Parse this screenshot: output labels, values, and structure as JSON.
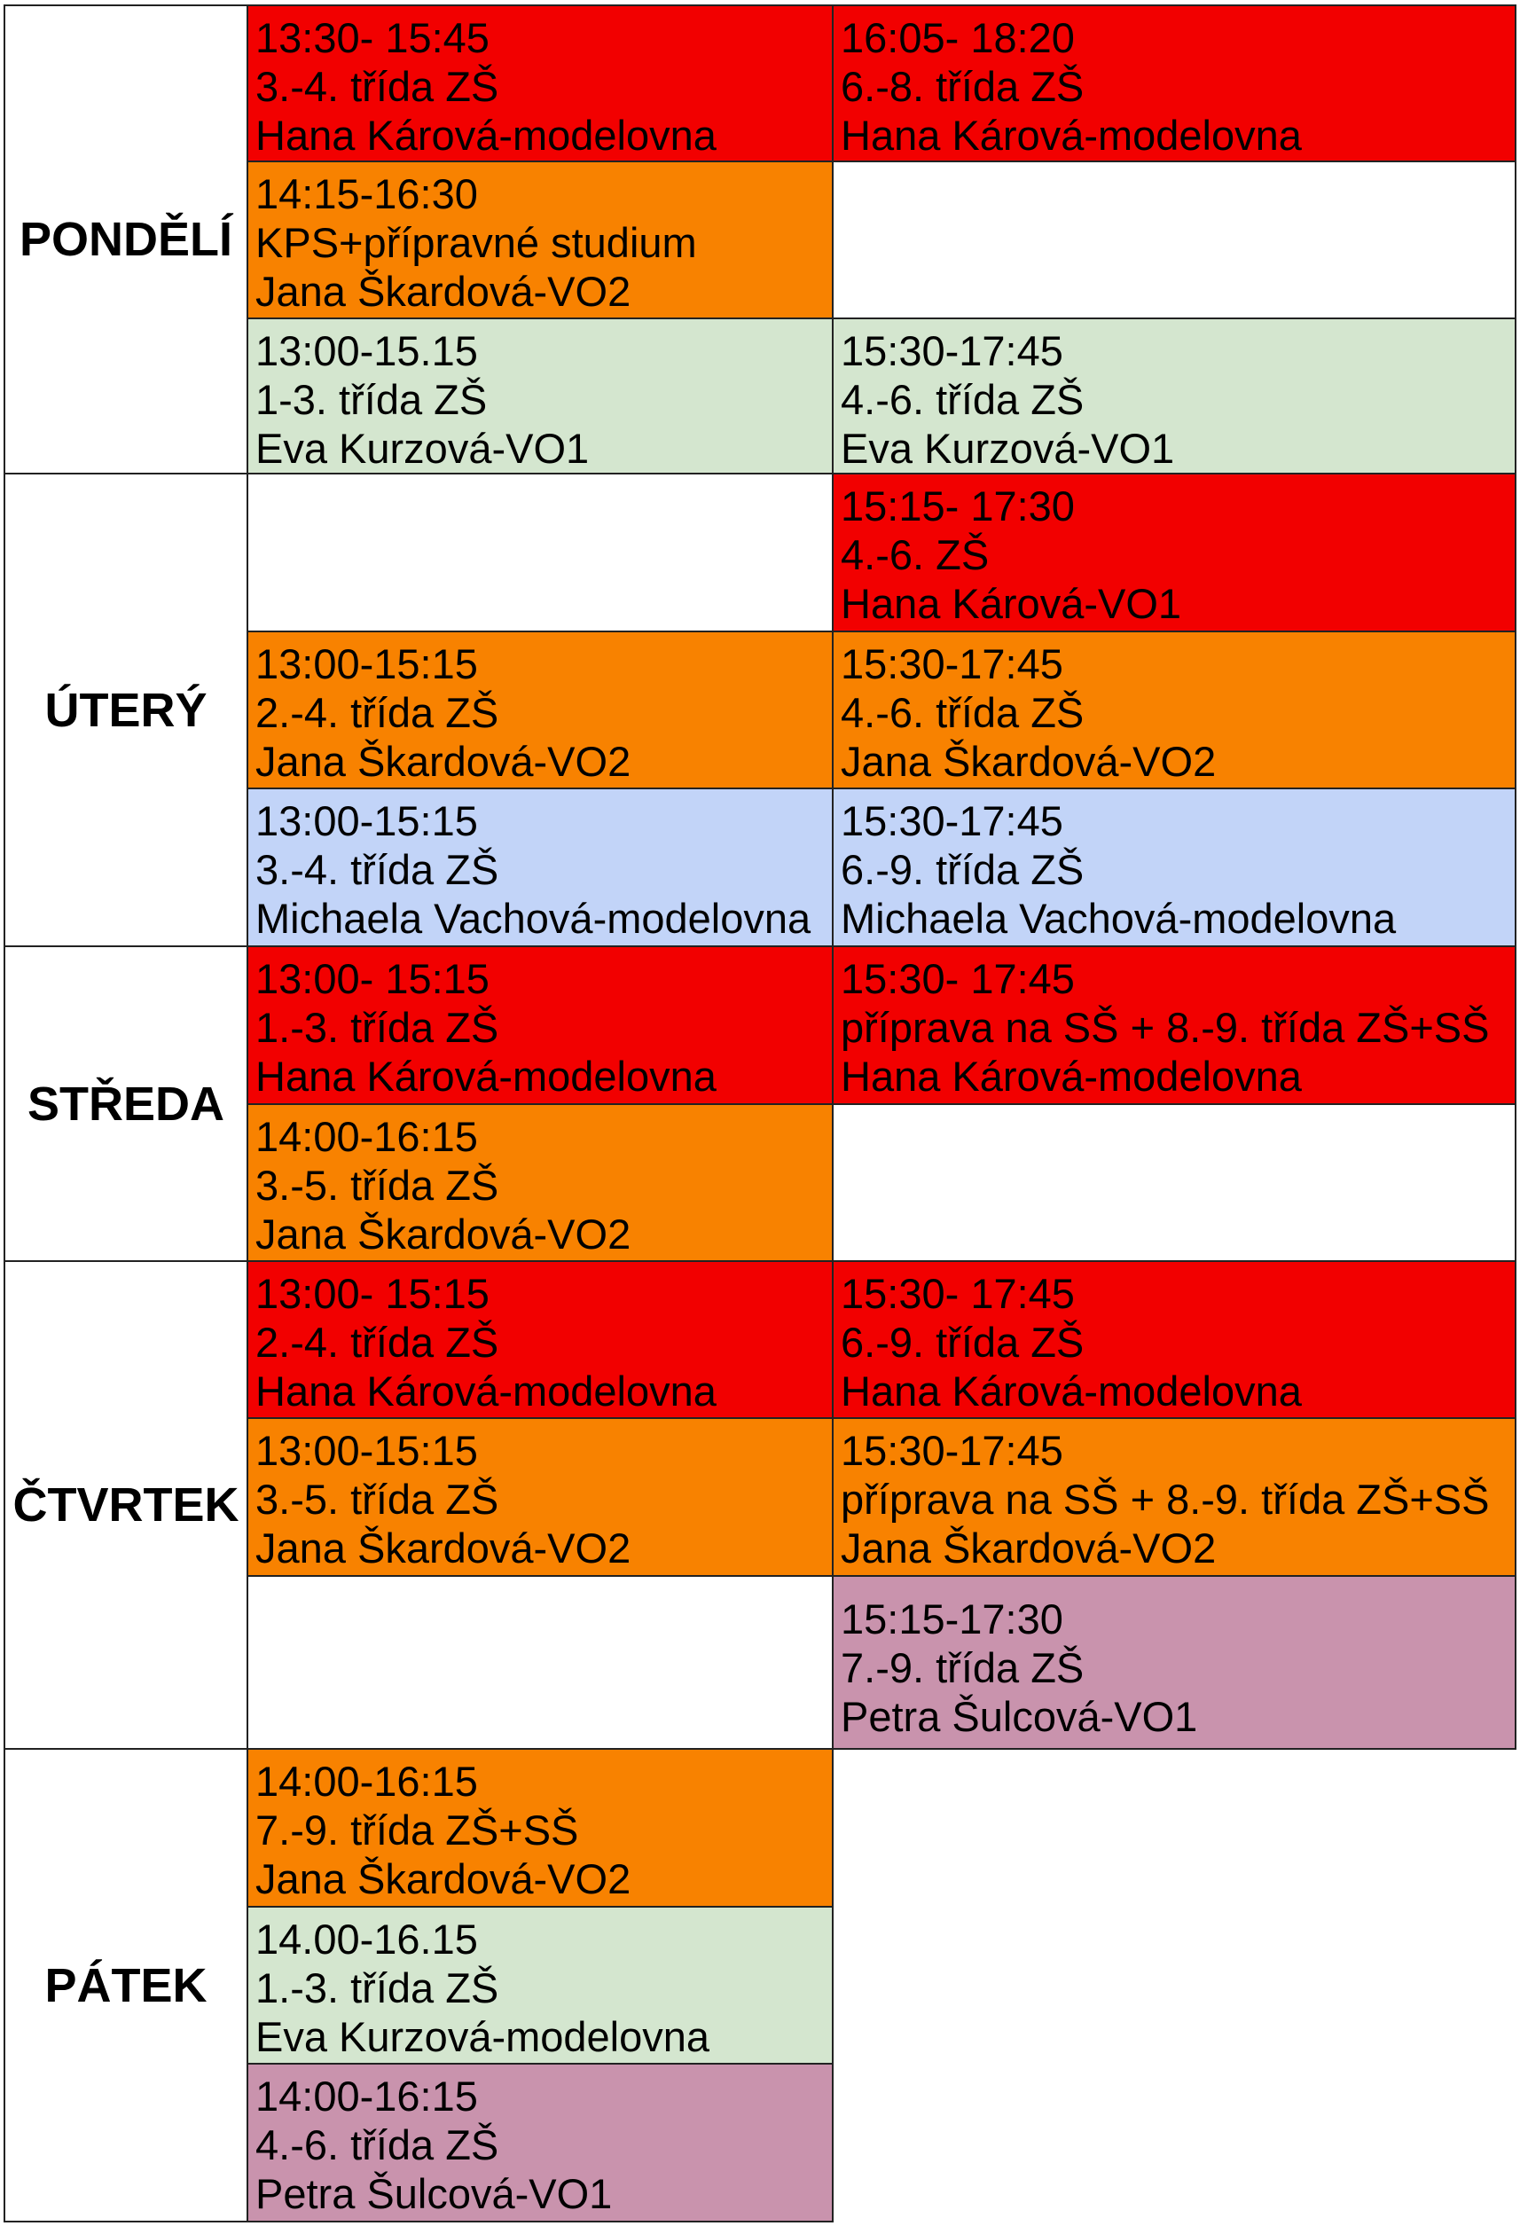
{
  "days": {
    "mon": "PONDĚLÍ",
    "tue": "ÚTERÝ",
    "wed": "STŘEDA",
    "thu": "ČTVRTEK",
    "fri": "PÁTEK"
  },
  "slots": {
    "mon_a1": {
      "time": "13:30- 15:45",
      "group": "3.-4. třída ZŠ",
      "teacher": "Hana Kárová-modelovna",
      "color": "#f20000"
    },
    "mon_a2": {
      "time": "16:05- 18:20",
      "group": "6.-8. třída ZŠ",
      "teacher": "Hana Kárová-modelovna",
      "color": "#f20000"
    },
    "mon_b1": {
      "time": "14:15-16:30",
      "group": "KPS+přípravné studium",
      "teacher": "Jana Škardová-VO2",
      "color": "#f88200"
    },
    "mon_c1": {
      "time": "13:00-15.15",
      "group": "1-3. třída ZŠ",
      "teacher": "Eva Kurzová-VO1",
      "color": "#d4e6cf"
    },
    "mon_c2": {
      "time": "15:30-17:45",
      "group": "4.-6. třída ZŠ",
      "teacher": "Eva Kurzová-VO1",
      "color": "#d4e6cf"
    },
    "tue_a2": {
      "time": "15:15- 17:30",
      "group": "4.-6. ZŠ",
      "teacher": "Hana Kárová-VO1",
      "color": "#f20000"
    },
    "tue_b1": {
      "time": "13:00-15:15",
      "group": "2.-4. třída ZŠ",
      "teacher": "Jana Škardová-VO2",
      "color": "#f88200"
    },
    "tue_b2": {
      "time": "15:30-17:45",
      "group": "4.-6. třída ZŠ",
      "teacher": "Jana Škardová-VO2",
      "color": "#f88200"
    },
    "tue_c1": {
      "time": "13:00-15:15",
      "group": "3.-4. třída ZŠ",
      "teacher": "Michaela Vachová-modelovna",
      "color": "#c2d4f8"
    },
    "tue_c2": {
      "time": "15:30-17:45",
      "group": "6.-9. třída ZŠ",
      "teacher": "Michaela Vachová-modelovna",
      "color": "#c2d4f8"
    },
    "wed_a1": {
      "time": "13:00- 15:15",
      "group": "1.-3. třída ZŠ",
      "teacher": "Hana Kárová-modelovna",
      "color": "#f20000"
    },
    "wed_a2": {
      "time": "15:30- 17:45",
      "group": "příprava na SŠ + 8.-9. třída ZŠ+SŠ",
      "teacher": "Hana Kárová-modelovna",
      "color": "#f20000"
    },
    "wed_b1": {
      "time": "14:00-16:15",
      "group": "3.-5. třída ZŠ",
      "teacher": "Jana Škardová-VO2",
      "color": "#f88200"
    },
    "thu_a1": {
      "time": "13:00- 15:15",
      "group": "2.-4. třída ZŠ",
      "teacher": "Hana Kárová-modelovna",
      "color": "#f20000"
    },
    "thu_a2": {
      "time": "15:30- 17:45",
      "group": "6.-9. třída ZŠ",
      "teacher": "Hana Kárová-modelovna",
      "color": "#f20000"
    },
    "thu_b1": {
      "time": "13:00-15:15",
      "group": "3.-5. třída ZŠ",
      "teacher": "Jana Škardová-VO2",
      "color": "#f88200"
    },
    "thu_b2": {
      "time": "15:30-17:45",
      "group": "příprava na SŠ + 8.-9. třída ZŠ+SŠ",
      "teacher": "Jana Škardová-VO2",
      "color": "#f88200"
    },
    "thu_c2": {
      "time": "15:15-17:30",
      "group": "7.-9. třída ZŠ",
      "teacher": "Petra Šulcová-VO1",
      "color": "#c993ad"
    },
    "fri_a1": {
      "time": "14:00-16:15",
      "group": "7.-9. třída ZŠ+SŠ",
      "teacher": "Jana Škardová-VO2",
      "color": "#f88200"
    },
    "fri_b1": {
      "time": "14.00-16.15",
      "group": "1.-3. třída ZŠ",
      "teacher": "Eva Kurzová-modelovna",
      "color": "#d4e6cf"
    },
    "fri_c1": {
      "time": "14:00-16:15",
      "group": "4.-6. třída ZŠ",
      "teacher": "Petra Šulcová-VO1",
      "color": "#c993ad"
    }
  }
}
